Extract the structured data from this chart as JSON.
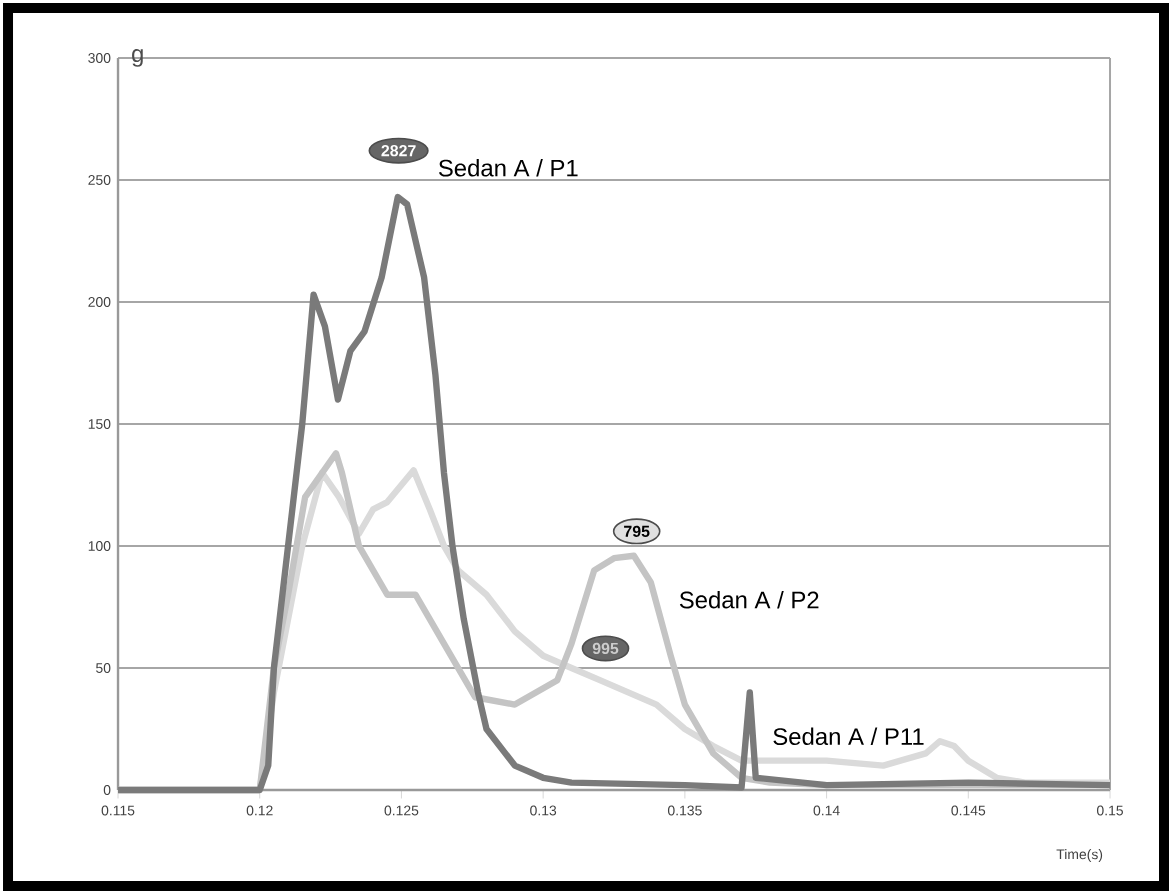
{
  "chart_data": {
    "type": "line",
    "xlabel": "Time(s)",
    "ylabel": "g",
    "xlim": [
      0.115,
      0.15
    ],
    "ylim": [
      0,
      300
    ],
    "xticks": [
      0.115,
      0.12,
      0.125,
      0.13,
      0.135,
      0.14,
      0.145,
      0.15
    ],
    "yticks": [
      0,
      50,
      100,
      150,
      200,
      250,
      300
    ],
    "grid": "y",
    "legend": false,
    "marker": "none",
    "line_style": "solid",
    "annotations": [
      "2827",
      "795",
      "995"
    ],
    "series": [
      {
        "name": "Sedan A / P1",
        "color": "#7a7a7a",
        "x": [
          0.115,
          0.12,
          0.1203,
          0.1205,
          0.121,
          0.1215,
          0.1219,
          0.1223,
          0.12276,
          0.1232,
          0.1237,
          0.1243,
          0.12487,
          0.1252,
          0.1258,
          0.1262,
          0.1265,
          0.1268,
          0.1272,
          0.1277,
          0.128,
          0.129,
          0.13,
          0.131,
          0.135,
          0.137,
          0.13729,
          0.1375,
          0.14,
          0.145,
          0.15
        ],
        "values": [
          0,
          0,
          10,
          50,
          100,
          150,
          203,
          190,
          160,
          180,
          188,
          210,
          243,
          240,
          210,
          170,
          130,
          100,
          70,
          40,
          25,
          10,
          5,
          3,
          2,
          1,
          40,
          5,
          2,
          3,
          2
        ]
      },
      {
        "name": "Sedan A / P2",
        "color": "#c4c4c4",
        "x": [
          0.115,
          0.12,
          0.1205,
          0.121,
          0.1216,
          0.12269,
          0.1229,
          0.1235,
          0.1245,
          0.1255,
          0.1265,
          0.1276,
          0.129,
          0.1305,
          0.131,
          0.1318,
          0.1325,
          0.1332,
          0.1338,
          0.1345,
          0.135,
          0.136,
          0.137,
          0.138,
          0.14,
          0.15
        ],
        "values": [
          0,
          0,
          50,
          80,
          120,
          138,
          130,
          100,
          80,
          80,
          60,
          38,
          35,
          45,
          60,
          90,
          95,
          96,
          85,
          55,
          35,
          15,
          5,
          3,
          2,
          2
        ]
      },
      {
        "name": "Sedan A / P11",
        "color": "#dadada",
        "x": [
          0.115,
          0.12,
          0.1205,
          0.1215,
          0.1222,
          0.1228,
          0.1235,
          0.124,
          0.1245,
          0.12543,
          0.126,
          0.1265,
          0.127,
          0.128,
          0.129,
          0.13,
          0.131,
          0.132,
          0.133,
          0.134,
          0.135,
          0.136,
          0.137,
          0.138,
          0.14,
          0.142,
          0.1435,
          0.144,
          0.1445,
          0.145,
          0.146,
          0.147,
          0.15
        ],
        "values": [
          0,
          0,
          40,
          100,
          130,
          120,
          105,
          115,
          118,
          131,
          115,
          100,
          90,
          80,
          65,
          55,
          50,
          45,
          40,
          35,
          25,
          18,
          12,
          12,
          12,
          10,
          15,
          20,
          18,
          12,
          5,
          3,
          3
        ]
      }
    ]
  }
}
